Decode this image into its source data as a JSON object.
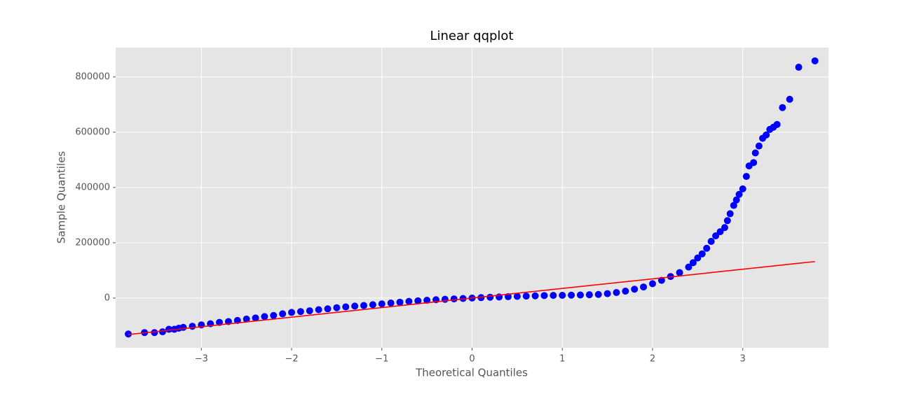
{
  "chart_data": {
    "type": "scatter",
    "title": "Linear qqplot",
    "x_label": "Theoretical Quantiles",
    "y_label": "Sample Quantiles",
    "xlim": [
      -3.95,
      3.95
    ],
    "ylim": [
      -180000,
      906000
    ],
    "xticks": [
      {
        "value": -3,
        "label": "−3"
      },
      {
        "value": -2,
        "label": "−2"
      },
      {
        "value": -1,
        "label": "−1"
      },
      0,
      1,
      2,
      3
    ],
    "yticks": [
      0,
      200000,
      400000,
      600000,
      800000
    ],
    "grid": true,
    "series": [
      {
        "type": "scatter",
        "color": "#0000ff",
        "x": [
          -3.81,
          -3.63,
          -3.52,
          -3.43,
          -3.36,
          -3.3,
          -3.25,
          -3.2,
          -3.1,
          -3.0,
          -2.9,
          -2.8,
          -2.7,
          -2.6,
          -2.5,
          -2.4,
          -2.3,
          -2.2,
          -2.1,
          -2.0,
          -1.9,
          -1.8,
          -1.7,
          -1.6,
          -1.5,
          -1.4,
          -1.3,
          -1.2,
          -1.1,
          -1.0,
          -0.9,
          -0.8,
          -0.7,
          -0.6,
          -0.5,
          -0.4,
          -0.3,
          -0.2,
          -0.1,
          0.0,
          0.1,
          0.2,
          0.3,
          0.4,
          0.5,
          0.6,
          0.7,
          0.8,
          0.9,
          1.0,
          1.1,
          1.2,
          1.3,
          1.4,
          1.5,
          1.6,
          1.7,
          1.8,
          1.9,
          2.0,
          2.1,
          2.2,
          2.3,
          2.4,
          2.45,
          2.5,
          2.55,
          2.6,
          2.65,
          2.7,
          2.75,
          2.8,
          2.83,
          2.86,
          2.9,
          2.93,
          2.96,
          3.0,
          3.04,
          3.07,
          3.12,
          3.14,
          3.18,
          3.22,
          3.26,
          3.3,
          3.34,
          3.38,
          3.44,
          3.52,
          3.62,
          3.8
        ],
        "values": [
          -130000,
          -125000,
          -125000,
          -122000,
          -113000,
          -113000,
          -109000,
          -106000,
          -102000,
          -97000,
          -93000,
          -88000,
          -85000,
          -81000,
          -76000,
          -72000,
          -67000,
          -63000,
          -57000,
          -52000,
          -49000,
          -46000,
          -42000,
          -39000,
          -35000,
          -32000,
          -29000,
          -27000,
          -24000,
          -21000,
          -18000,
          -15000,
          -12000,
          -10000,
          -8000,
          -6000,
          -4500,
          -3000,
          -1500,
          0,
          1500,
          3000,
          4000,
          5000,
          6000,
          7000,
          8000,
          9000,
          9500,
          10000,
          10500,
          11000,
          12000,
          13000,
          16000,
          20000,
          25000,
          32000,
          40000,
          52000,
          64000,
          78000,
          92000,
          112000,
          128000,
          145000,
          160000,
          180000,
          205000,
          225000,
          240000,
          255000,
          280000,
          305000,
          335000,
          355000,
          375000,
          395000,
          440000,
          478000,
          490000,
          525000,
          550000,
          578000,
          590000,
          610000,
          618000,
          628000,
          689000,
          719000,
          835000,
          858000
        ]
      },
      {
        "type": "line",
        "color": "#ff0000",
        "x": [
          -3.81,
          3.8
        ],
        "values": [
          -132000,
          132000
        ]
      }
    ]
  }
}
